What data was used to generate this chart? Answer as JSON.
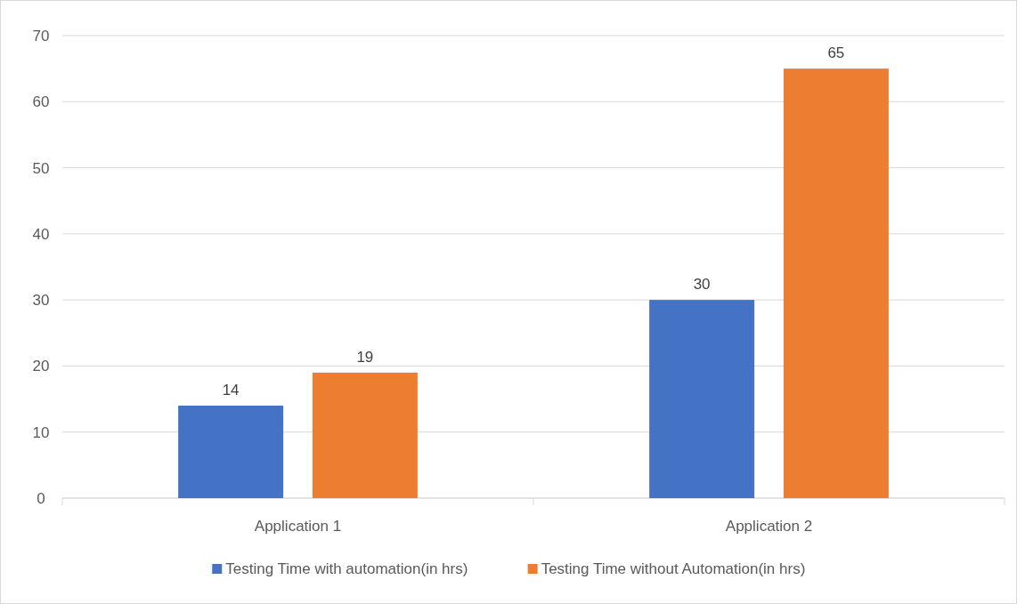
{
  "chart_data": {
    "type": "bar",
    "categories": [
      "Application 1",
      "Application 2"
    ],
    "series": [
      {
        "name": "Testing Time with automation(in hrs)",
        "color": "#4472c4",
        "values": [
          14,
          30
        ]
      },
      {
        "name": "Testing Time without Automation(in hrs)",
        "color": "#ed7d31",
        "values": [
          19,
          65
        ]
      }
    ],
    "ylim": [
      0,
      70
    ],
    "yticks": [
      0,
      10,
      20,
      30,
      40,
      50,
      60,
      70
    ],
    "grid": "y",
    "legend": "bottom",
    "data_labels": true
  }
}
